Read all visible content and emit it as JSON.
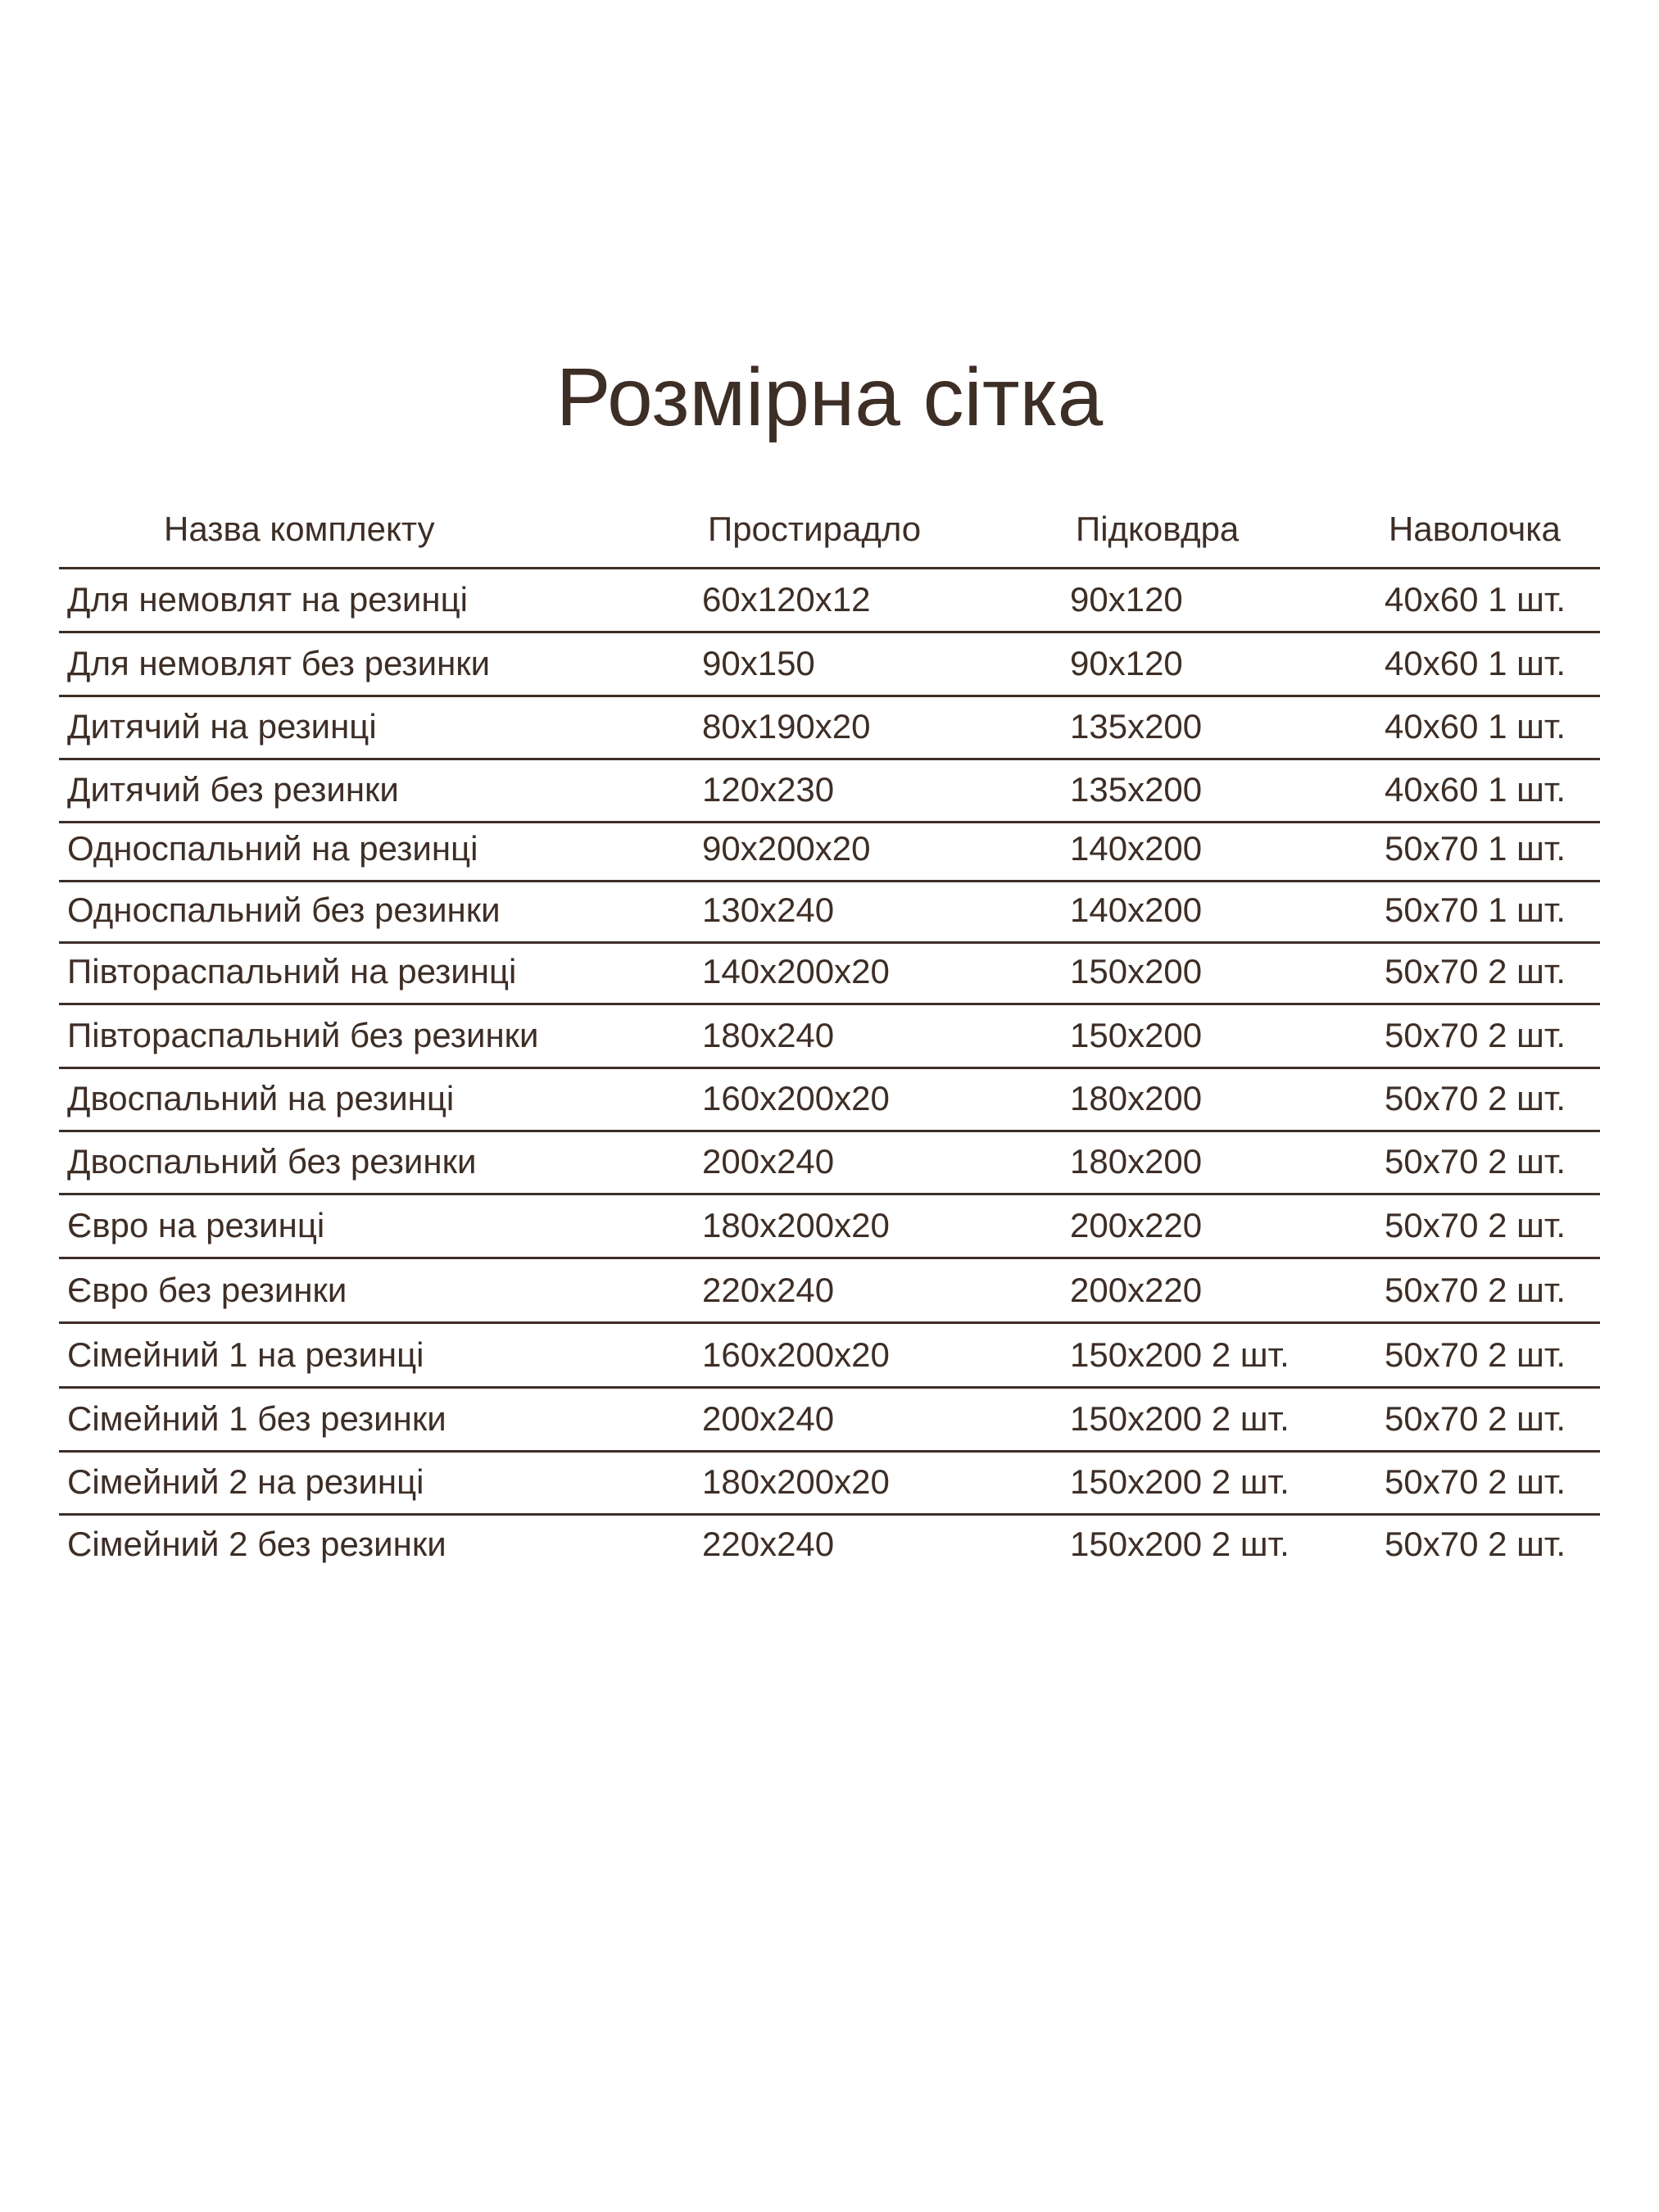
{
  "title": "Розмірна сітка",
  "table": {
    "headers": [
      "Назва комплекту",
      "Простирадло",
      "Підковдра",
      "Наволочка"
    ],
    "rows": [
      [
        "Для немовлят на резинці",
        "60x120x12",
        "90x120",
        "40x60 1 шт."
      ],
      [
        "Для немовлят без резинки",
        "90x150",
        "90x120",
        "40x60 1 шт."
      ],
      [
        "Дитячий на резинці",
        "80x190x20",
        "135x200",
        "40x60 1 шт."
      ],
      [
        "Дитячий без резинки",
        "120x230",
        "135x200",
        "40x60 1 шт."
      ],
      [
        "Односпальний на резинці",
        "90x200x20",
        "140x200",
        "50x70 1 шт."
      ],
      [
        "Односпальний без резинки",
        "130x240",
        "140x200",
        "50x70 1 шт."
      ],
      [
        "Півтораспальний на резинці",
        "140x200x20",
        "150x200",
        "50x70 2 шт."
      ],
      [
        "Півтораспальний без резинки",
        "180x240",
        "150x200",
        "50x70 2 шт."
      ],
      [
        "Двоспальний на резинці",
        "160x200x20",
        "180x200",
        "50x70 2 шт."
      ],
      [
        "Двоспальний без резинки",
        "200x240",
        "180x200",
        "50x70 2 шт."
      ],
      [
        "Євро на резинці",
        "180x200x20",
        "200x220",
        "50x70 2 шт."
      ],
      [
        "Євро без резинки",
        "220x240",
        "200x220",
        "50x70 2 шт."
      ],
      [
        "Сімейний 1 на резинці",
        "160x200x20",
        "150x200 2 шт.",
        "50x70 2 шт."
      ],
      [
        "Сімейний 1 без резинки",
        "200x240",
        "150x200 2 шт.",
        "50x70 2 шт."
      ],
      [
        "Сімейний 2 на резинці",
        "180x200x20",
        "150x200 2 шт.",
        "50x70 2 шт."
      ],
      [
        "Сімейний 2 без резинки",
        "220x240",
        "150x200 2 шт.",
        "50x70 2 шт."
      ]
    ]
  },
  "colors": {
    "text": "#3d2e26",
    "background": "#ffffff"
  }
}
